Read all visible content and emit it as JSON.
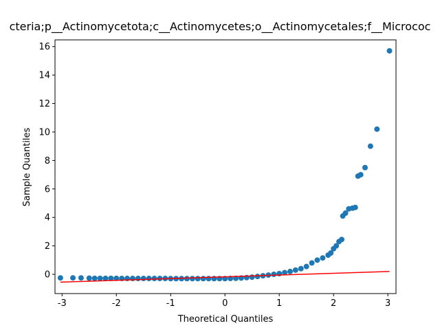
{
  "chart_data": {
    "type": "scatter",
    "title": "cteria;p__Actinomycetota;c__Actinomycetes;o__Actinomycetales;f__Micrococ",
    "x_label": "Theoretical Quantiles",
    "y_label": "Sample Quantiles",
    "xlim": [
      -3.13,
      3.15
    ],
    "ylim": [
      -1.35,
      16.47
    ],
    "xticks": [
      -3,
      -2,
      -1,
      0,
      1,
      2,
      3
    ],
    "yticks": [
      0,
      2,
      4,
      6,
      8,
      10,
      12,
      14,
      16
    ],
    "series": [
      {
        "name": "sample",
        "color": "#1f77b4",
        "x": [
          -3.03,
          -2.8,
          -2.65,
          -2.5,
          -2.4,
          -2.3,
          -2.2,
          -2.1,
          -2.0,
          -1.9,
          -1.8,
          -1.7,
          -1.6,
          -1.5,
          -1.4,
          -1.3,
          -1.2,
          -1.1,
          -1.0,
          -0.9,
          -0.8,
          -0.7,
          -0.6,
          -0.5,
          -0.4,
          -0.3,
          -0.2,
          -0.1,
          0.0,
          0.1,
          0.2,
          0.3,
          0.4,
          0.5,
          0.6,
          0.7,
          0.8,
          0.9,
          1.0,
          1.1,
          1.2,
          1.3,
          1.4,
          1.5,
          1.6,
          1.7,
          1.8,
          1.9,
          1.95,
          2.0,
          2.05,
          2.1,
          2.15,
          2.17,
          2.22,
          2.28,
          2.35,
          2.4,
          2.45,
          2.5,
          2.58,
          2.68,
          2.8,
          3.03
        ],
        "values": [
          -0.25,
          -0.25,
          -0.25,
          -0.27,
          -0.28,
          -0.28,
          -0.28,
          -0.28,
          -0.28,
          -0.29,
          -0.29,
          -0.29,
          -0.29,
          -0.29,
          -0.29,
          -0.29,
          -0.29,
          -0.29,
          -0.3,
          -0.3,
          -0.3,
          -0.3,
          -0.3,
          -0.3,
          -0.3,
          -0.3,
          -0.3,
          -0.3,
          -0.3,
          -0.29,
          -0.28,
          -0.26,
          -0.23,
          -0.2,
          -0.15,
          -0.1,
          -0.05,
          0.0,
          0.05,
          0.12,
          0.2,
          0.3,
          0.4,
          0.55,
          0.8,
          1.0,
          1.15,
          1.35,
          1.5,
          1.8,
          2.0,
          2.3,
          2.45,
          4.1,
          4.3,
          4.6,
          4.65,
          4.7,
          6.9,
          7.0,
          7.5,
          9.0,
          10.2,
          15.7
        ]
      },
      {
        "name": "reference",
        "color": "#ff0000",
        "kind": "line",
        "x": [
          -3.03,
          3.03
        ],
        "values": [
          -0.55,
          0.2
        ]
      }
    ]
  }
}
